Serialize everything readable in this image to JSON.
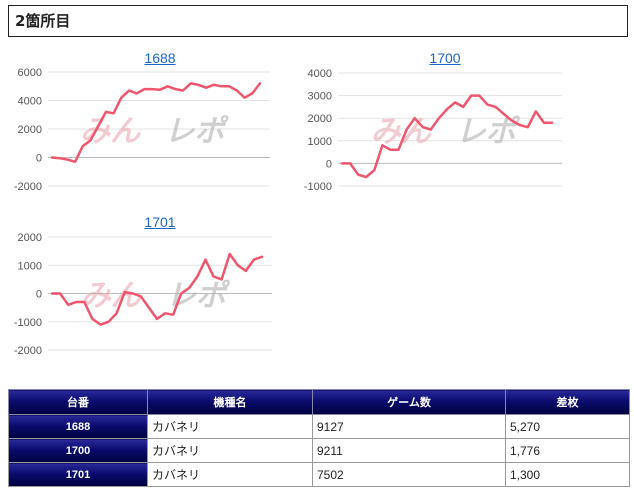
{
  "section": {
    "title": "2箇所目"
  },
  "watermark": "みんレポ",
  "colors": {
    "line": "#f0556e",
    "header_bg": "#0b0b6e",
    "link": "#1a66c9"
  },
  "chart_data": [
    {
      "type": "line",
      "title": "1688",
      "xlabel": "",
      "ylabel": "",
      "ylim": [
        -2000,
        6000
      ],
      "yticks": [
        "6000",
        "4000",
        "2000",
        "0",
        "-2000"
      ],
      "y": [
        0,
        -50,
        -150,
        -300,
        800,
        1200,
        2200,
        3200,
        3100,
        4200,
        4700,
        4500,
        4800,
        4800,
        4750,
        5000,
        4800,
        4700,
        5200,
        5100,
        4900,
        5100,
        5000,
        5000,
        4700,
        4200,
        4500,
        5200
      ]
    },
    {
      "type": "line",
      "title": "1700",
      "xlabel": "",
      "ylabel": "",
      "ylim": [
        -1000,
        4000
      ],
      "yticks": [
        "4000",
        "3000",
        "2000",
        "1000",
        "0",
        "-1000"
      ],
      "y": [
        0,
        0,
        -500,
        -600,
        -300,
        800,
        600,
        600,
        1500,
        2000,
        1600,
        1500,
        2000,
        2400,
        2700,
        2500,
        3000,
        3000,
        2600,
        2500,
        2200,
        1900,
        1700,
        1600,
        2300,
        1800,
        1800
      ]
    },
    {
      "type": "line",
      "title": "1701",
      "xlabel": "",
      "ylabel": "",
      "ylim": [
        -2000,
        2000
      ],
      "yticks": [
        "2000",
        "1000",
        "0",
        "-1000",
        "-2000"
      ],
      "y": [
        0,
        0,
        -400,
        -300,
        -300,
        -900,
        -1100,
        -1000,
        -700,
        50,
        0,
        -100,
        -500,
        -900,
        -700,
        -750,
        0,
        200,
        600,
        1200,
        600,
        500,
        1400,
        1000,
        800,
        1200,
        1300
      ]
    }
  ],
  "table": {
    "headers": [
      "台番",
      "機種名",
      "ゲーム数",
      "差枚"
    ],
    "rows": [
      {
        "no": "1688",
        "name": "カバネリ",
        "games": "9127",
        "diff": "5,270"
      },
      {
        "no": "1700",
        "name": "カバネリ",
        "games": "9211",
        "diff": "1,776"
      },
      {
        "no": "1701",
        "name": "カバネリ",
        "games": "7502",
        "diff": "1,300"
      }
    ]
  }
}
